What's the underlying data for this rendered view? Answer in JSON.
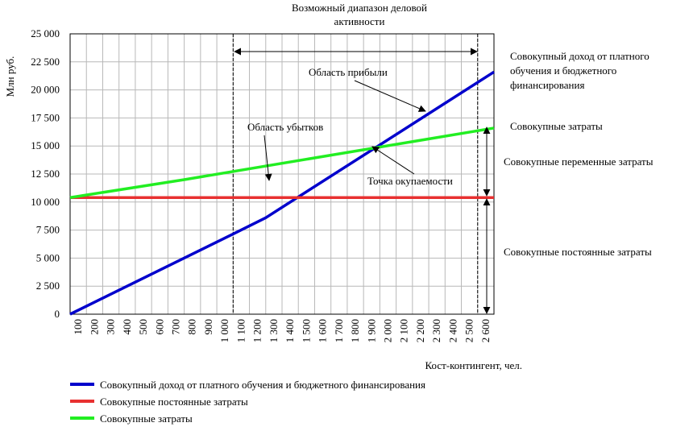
{
  "chart_data": {
    "type": "line",
    "title": "",
    "xlabel": "Кост-контингент, чел.",
    "ylabel": "Млн руб.",
    "ylim": [
      0,
      25000
    ],
    "xlim": [
      0,
      2600
    ],
    "grid": true,
    "legend_position": "bottom",
    "x_ticks": [
      "100",
      "200",
      "300",
      "400",
      "500",
      "600",
      "700",
      "800",
      "900",
      "1 000",
      "1 100",
      "1 200",
      "1 300",
      "1 400",
      "1 500",
      "1 600",
      "1 700",
      "1 800",
      "1 900",
      "2 000",
      "2 100",
      "2 200",
      "2 300",
      "2 400",
      "2 500",
      "2 600"
    ],
    "y_ticks": [
      "0",
      "2 500",
      "5 000",
      "7 500",
      "10 000",
      "12 500",
      "15 000",
      "17 500",
      "20 000",
      "22 500",
      "25 000"
    ],
    "series": [
      {
        "name": "Совокупный доход от платного обучения и бюджетного финансирования",
        "color": "#0000cc",
        "x": [
          0,
          1000,
          1200,
          2600
        ],
        "y": [
          0,
          7150,
          8600,
          21600
        ]
      },
      {
        "name": "Совокупные постоянные затраты",
        "color": "#e83030",
        "x": [
          0,
          2600
        ],
        "y": [
          10400,
          10400
        ]
      },
      {
        "name": "Совокупные затраты",
        "color": "#22ee22",
        "x": [
          0,
          700,
          2600
        ],
        "y": [
          10400,
          12000,
          16600
        ]
      }
    ],
    "range_lines": [
      1000,
      2500
    ],
    "annotations": {
      "range_title_line1": "Возможный диапазон деловой",
      "range_title_line2": "активности",
      "profit": "Область прибыли",
      "loss": "Область убытков",
      "breakeven": "Точка окупаемости",
      "right_income_line1": "Совокупный доход от платного",
      "right_income_line2": "обучения и бюджетного",
      "right_income_line3": "финансирования",
      "right_total": "Совокупные затраты",
      "right_variable": "Совокупные переменные затраты",
      "right_fixed": "Совокупные постоянные затраты"
    }
  }
}
